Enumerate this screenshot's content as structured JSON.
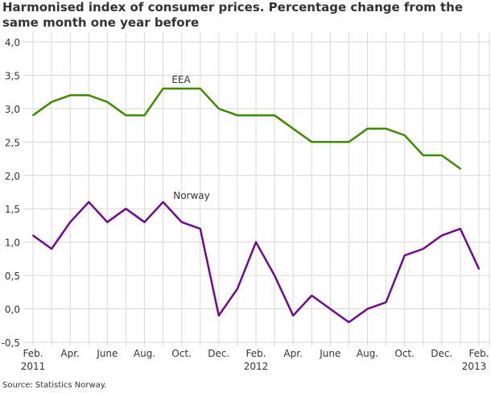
{
  "chart_data": {
    "type": "line",
    "title": "Harmonised index of consumer prices. Percentage change from the same month one year before",
    "source": "Source: Statistics Norway.",
    "x": [
      "Feb. 2011",
      "Mar. 2011",
      "Apr. 2011",
      "May 2011",
      "June 2011",
      "July 2011",
      "Aug. 2011",
      "Sep. 2011",
      "Oct. 2011",
      "Nov. 2011",
      "Dec. 2011",
      "Jan. 2012",
      "Feb. 2012",
      "Mar. 2012",
      "Apr. 2012",
      "May 2012",
      "June 2012",
      "July 2012",
      "Aug. 2012",
      "Sep. 2012",
      "Oct. 2012",
      "Nov. 2012",
      "Dec. 2012",
      "Jan. 2013",
      "Feb. 2013"
    ],
    "x_tick_labels": [
      [
        "Feb.",
        "2011"
      ],
      [
        "",
        ""
      ],
      [
        "Apr.",
        ""
      ],
      [
        "",
        ""
      ],
      [
        "June",
        ""
      ],
      [
        "",
        ""
      ],
      [
        "Aug.",
        ""
      ],
      [
        "",
        ""
      ],
      [
        "Oct.",
        ""
      ],
      [
        "",
        ""
      ],
      [
        "Dec.",
        ""
      ],
      [
        "",
        ""
      ],
      [
        "Feb.",
        "2012"
      ],
      [
        "",
        ""
      ],
      [
        "Apr.",
        ""
      ],
      [
        "",
        ""
      ],
      [
        "June",
        ""
      ],
      [
        "",
        ""
      ],
      [
        "Aug.",
        ""
      ],
      [
        "",
        ""
      ],
      [
        "Oct.",
        ""
      ],
      [
        "",
        ""
      ],
      [
        "Dec.",
        ""
      ],
      [
        "",
        ""
      ],
      [
        "Feb.",
        "2013"
      ]
    ],
    "y_ticks": [
      "4,0",
      "3,5",
      "3,0",
      "2,5",
      "2,0",
      "1,5",
      "1,0",
      "0,5",
      "0,0",
      "-0,5"
    ],
    "ylim": [
      -0.5,
      4.0
    ],
    "grid": true,
    "series": [
      {
        "name": "EEA",
        "color": "#3f8a00",
        "values": [
          2.9,
          3.1,
          3.2,
          3.2,
          3.1,
          2.9,
          2.9,
          3.3,
          3.3,
          3.3,
          3.0,
          2.9,
          2.9,
          2.9,
          2.7,
          2.5,
          2.5,
          2.5,
          2.7,
          2.7,
          2.6,
          2.3,
          2.3,
          2.1,
          null
        ]
      },
      {
        "name": "Norway",
        "color": "#6e0a8c",
        "values": [
          1.1,
          0.9,
          1.3,
          1.6,
          1.3,
          1.5,
          1.3,
          1.6,
          1.3,
          1.2,
          -0.1,
          0.3,
          1.0,
          0.5,
          -0.1,
          0.2,
          0.0,
          -0.2,
          0.0,
          0.1,
          0.8,
          0.9,
          1.1,
          1.2,
          0.6
        ]
      }
    ]
  }
}
